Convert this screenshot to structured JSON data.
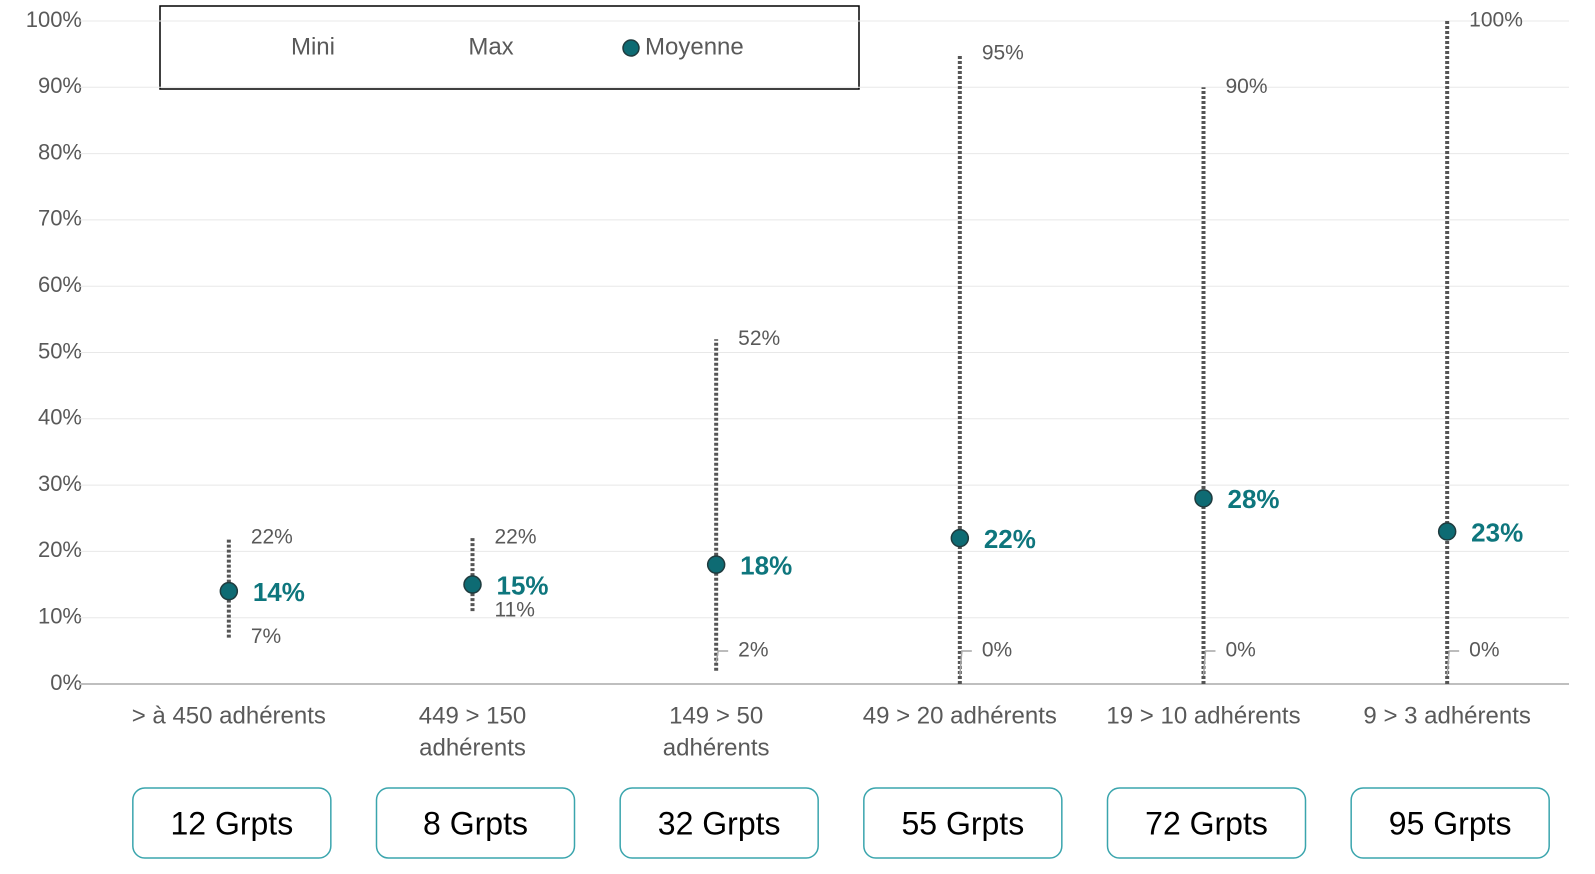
{
  "chart_data": {
    "type": "range",
    "categories": [
      [
        "> à 450 adhérents"
      ],
      [
        "449 > 150",
        "adhérents"
      ],
      [
        "149 > 50",
        "adhérents"
      ],
      [
        "49 > 20 adhérents"
      ],
      [
        "19 > 10 adhérents"
      ],
      [
        "9 > 3 adhérents"
      ]
    ],
    "series": [
      {
        "name": "Mini",
        "color": "#555555",
        "values": [
          7,
          11,
          2,
          0,
          0,
          0
        ],
        "value_labels": [
          "7%",
          "11%",
          "2%",
          "0%",
          "0%",
          "0%"
        ]
      },
      {
        "name": "Max",
        "color": "#555555",
        "values": [
          22,
          22,
          52,
          95,
          90,
          100
        ],
        "value_labels": [
          "22%",
          "22%",
          "52%",
          "95%",
          "90%",
          "100%"
        ]
      },
      {
        "name": "Moyenne",
        "color": "#0e6b73",
        "values": [
          14,
          15,
          18,
          22,
          28,
          23
        ],
        "value_labels": [
          "14%",
          "15%",
          "18%",
          "22%",
          "28%",
          "23%"
        ]
      }
    ],
    "ylim": [
      0,
      100
    ],
    "yticks": [
      {
        "value": 0,
        "label": "0%"
      },
      {
        "value": 10,
        "label": "10%"
      },
      {
        "value": 20,
        "label": "20%"
      },
      {
        "value": 30,
        "label": "30%"
      },
      {
        "value": 40,
        "label": "40%"
      },
      {
        "value": 50,
        "label": "50%"
      },
      {
        "value": 60,
        "label": "60%"
      },
      {
        "value": 70,
        "label": "70%"
      },
      {
        "value": 80,
        "label": "80%"
      },
      {
        "value": 90,
        "label": "90%"
      },
      {
        "value": 100,
        "label": "100%"
      }
    ],
    "grid": true,
    "group_counts": [
      "12 Grpts",
      "8 Grpts",
      "32 Grpts",
      "55 Grpts",
      "72 Grpts",
      "95 Grpts"
    ]
  }
}
